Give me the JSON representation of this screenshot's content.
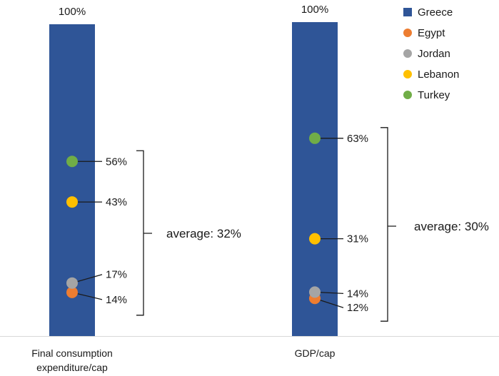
{
  "chart_data": {
    "type": "bar",
    "categories": [
      "Final consumption expenditure/cap",
      "GDP/cap"
    ],
    "category_lines": [
      [
        "Final consumption",
        "expenditure/cap"
      ],
      [
        "GDP/cap"
      ]
    ],
    "ylim": [
      0,
      100
    ],
    "value_suffix": "%",
    "series": [
      {
        "name": "Greece",
        "color": "#2F5597",
        "marker": "square",
        "values": [
          100,
          100
        ]
      },
      {
        "name": "Egypt",
        "color": "#ED7D31",
        "marker": "circle",
        "values": [
          14,
          12
        ]
      },
      {
        "name": "Jordan",
        "color": "#A5A5A5",
        "marker": "circle",
        "values": [
          17,
          14
        ]
      },
      {
        "name": "Lebanon",
        "color": "#FFC000",
        "marker": "circle",
        "values": [
          43,
          31
        ]
      },
      {
        "name": "Turkey",
        "color": "#70AD47",
        "marker": "circle",
        "values": [
          56,
          63
        ]
      }
    ],
    "averages": [
      {
        "label": "average: 32%",
        "value": 32
      },
      {
        "label": "average: 30%",
        "value": 30
      }
    ],
    "legend": {
      "position": "top-right"
    }
  }
}
